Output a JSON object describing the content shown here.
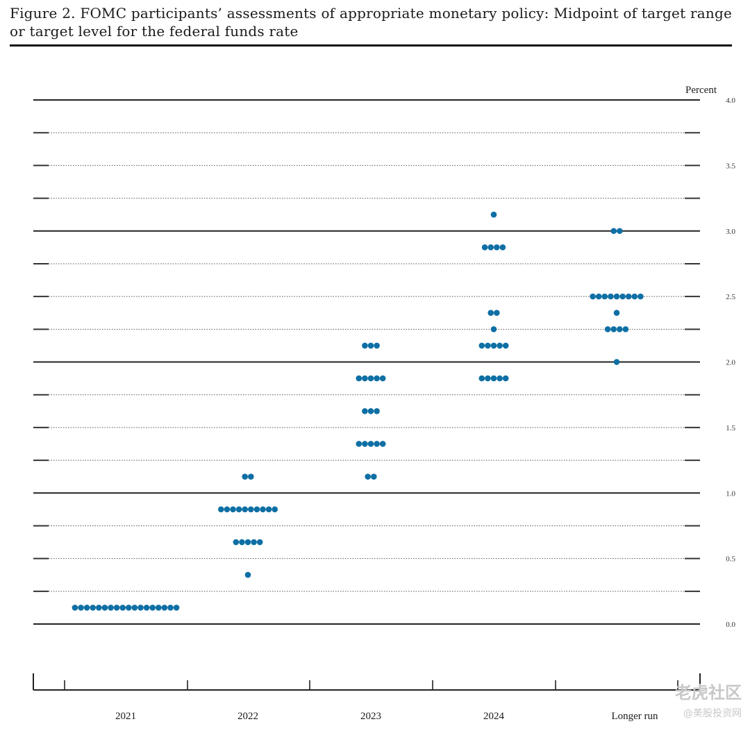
{
  "figure": {
    "title": "Figure 2.  FOMC participants’ assessments of appropriate monetary policy:  Midpoint of target range or target level for the federal funds rate"
  },
  "watermark": {
    "main": "老虎社区",
    "sub": "@美股投资网"
  },
  "chart_data": {
    "type": "scatter",
    "subtype": "dot-plot",
    "title": "Figure 2.  FOMC participants’ assessments of appropriate monetary policy:  Midpoint of target range or target level for the federal funds rate",
    "ylabel": "Percent",
    "ylim": [
      0.0,
      4.0
    ],
    "yticks": [
      0.0,
      0.5,
      1.0,
      1.5,
      2.0,
      2.5,
      3.0,
      3.5,
      4.0
    ],
    "ytick_labels": [
      "0.0",
      "0.5",
      "1.0",
      "1.5",
      "2.0",
      "2.5",
      "3.0",
      "3.5",
      "4.0"
    ],
    "minor_gridlines_step": 0.25,
    "major_gridlines": [
      0.0,
      1.0,
      2.0,
      3.0,
      4.0
    ],
    "categories": [
      "2021",
      "2022",
      "2023",
      "2024",
      "Longer run"
    ],
    "dot_color": "#0e6fa5",
    "grid_color": "#555555",
    "columns": [
      {
        "category": "2021",
        "dots": [
          {
            "y": 0.125,
            "count": 18
          }
        ]
      },
      {
        "category": "2022",
        "dots": [
          {
            "y": 1.125,
            "count": 2
          },
          {
            "y": 0.875,
            "count": 10
          },
          {
            "y": 0.625,
            "count": 5
          },
          {
            "y": 0.375,
            "count": 1
          }
        ]
      },
      {
        "category": "2023",
        "dots": [
          {
            "y": 2.125,
            "count": 3
          },
          {
            "y": 1.875,
            "count": 5
          },
          {
            "y": 1.625,
            "count": 3
          },
          {
            "y": 1.375,
            "count": 5
          },
          {
            "y": 1.125,
            "count": 2
          }
        ]
      },
      {
        "category": "2024",
        "dots": [
          {
            "y": 3.125,
            "count": 1
          },
          {
            "y": 2.875,
            "count": 4
          },
          {
            "y": 2.375,
            "count": 2
          },
          {
            "y": 2.25,
            "count": 1
          },
          {
            "y": 2.125,
            "count": 5
          },
          {
            "y": 1.875,
            "count": 5
          }
        ]
      },
      {
        "category": "Longer run",
        "dots": [
          {
            "y": 3.0,
            "count": 2
          },
          {
            "y": 2.5,
            "count": 9
          },
          {
            "y": 2.375,
            "count": 1
          },
          {
            "y": 2.25,
            "count": 4
          },
          {
            "y": 2.0,
            "count": 1
          }
        ]
      }
    ]
  }
}
